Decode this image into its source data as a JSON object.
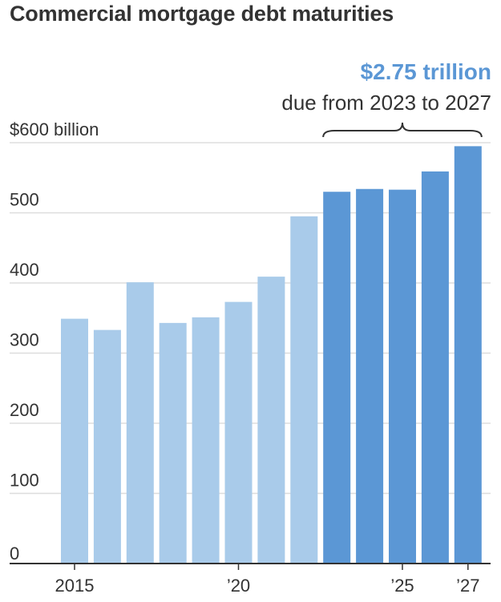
{
  "chart_data": {
    "type": "bar",
    "title": "Commercial mortgage debt maturities",
    "annotation": {
      "value": "$2.75 trillion",
      "text": "due from 2023 to 2027",
      "span": [
        2023,
        2027
      ]
    },
    "categories": [
      2015,
      2016,
      2017,
      2018,
      2019,
      2020,
      2021,
      2022,
      2023,
      2024,
      2025,
      2026,
      2027
    ],
    "values": [
      349,
      333,
      401,
      343,
      351,
      373,
      409,
      495,
      530,
      534,
      533,
      559,
      595
    ],
    "ylim": [
      0,
      600
    ],
    "y_ticks": [
      {
        "value": 600,
        "label": "$600 billion"
      },
      {
        "value": 500,
        "label": "500"
      },
      {
        "value": 400,
        "label": "400"
      },
      {
        "value": 300,
        "label": "300"
      },
      {
        "value": 200,
        "label": "200"
      },
      {
        "value": 100,
        "label": "100"
      },
      {
        "value": 0,
        "label": "0"
      }
    ],
    "x_ticks": [
      {
        "value": 2015,
        "label": "2015"
      },
      {
        "value": 2020,
        "label": "’20"
      },
      {
        "value": 2025,
        "label": "’25"
      },
      {
        "value": 2027,
        "label": "’27"
      }
    ],
    "colors": {
      "past": "#a9cbea",
      "future": "#5b97d5",
      "grid": "#dddddd",
      "axis": "#333333"
    },
    "grid": true,
    "legend": "none"
  }
}
